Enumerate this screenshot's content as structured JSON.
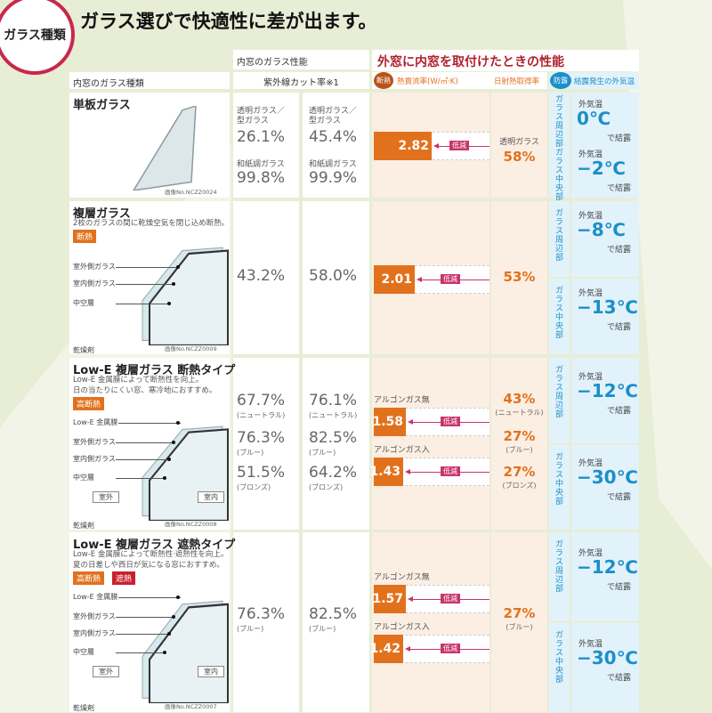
{
  "badge_title": "ガラス種類",
  "headline": "ガラス選びで快適性に差が出ます。",
  "header": {
    "glass_type": "内窓のガラス種類",
    "inner_perf": "内窓のガラス性能",
    "uv_cut": "紫外線カット率※1",
    "outer_title": "外窓に内窓を取付けたときの性能",
    "insulation_tag": "断熱",
    "heat_transfer": "熱貫流率(W/㎡·K)",
    "solar_gain": "日射熱取得率",
    "dew_tag": "防露",
    "dew_temp": "結露発生の外気温"
  },
  "colors": {
    "orange": "#e2711d",
    "pink": "#c8356b",
    "blue": "#1a8fc9",
    "red_title": "#b0202e",
    "circle": "#c8284a"
  },
  "common": {
    "edge": "ガラス周辺部",
    "center": "ガラス中央部",
    "outside_temp": "外気温",
    "condense": "で結露",
    "reduce": "低減",
    "outdoor": "室外",
    "indoor": "室内"
  },
  "rows": [
    {
      "name": "単板ガラス",
      "desc": [],
      "tags": [],
      "layers": [],
      "desiccant": "",
      "image_no": "画像No.NCZZ0024",
      "uv": [
        [
          {
            "label": "透明ガラス／\n型ガラス",
            "value": "26.1%"
          },
          {
            "label": "和紙調ガラス",
            "value": "99.8%"
          }
        ],
        [
          {
            "label": "透明ガラス／\n型ガラス",
            "value": "45.4%"
          },
          {
            "label": "和紙調ガラス",
            "value": "99.9%"
          }
        ]
      ],
      "heat": [
        {
          "label": "",
          "value": 2.82
        }
      ],
      "solar": [
        {
          "label": "透明ガラス",
          "value": "58%"
        }
      ],
      "dew": [
        "0℃",
        "−2℃"
      ]
    },
    {
      "name": "複層ガラス",
      "desc": [
        "2枚のガラスの間に乾燥空気を閉じ込め断熱。"
      ],
      "tags": [
        {
          "text": "断熱",
          "color": "#e2711d"
        }
      ],
      "layers": [
        "室外側ガラス",
        "室内側ガラス",
        "中空層"
      ],
      "desiccant": "乾燥剤",
      "image_no": "画像No.NCZZ0009",
      "uv": [
        [
          {
            "value": "43.2%"
          }
        ],
        [
          {
            "value": "58.0%"
          }
        ]
      ],
      "heat": [
        {
          "label": "",
          "value": 2.01
        }
      ],
      "solar": [
        {
          "value": "53%"
        }
      ],
      "dew": [
        "−8℃",
        "−13℃"
      ]
    },
    {
      "name": "Low-E 複層ガラス 断熱タイプ",
      "desc": [
        "Low-E 金属膜によって断熱性を向上。",
        "日の当たりにくい窓、寒冷地におすすめ。"
      ],
      "tags": [
        {
          "text": "高断熱",
          "color": "#e2711d"
        }
      ],
      "layers": [
        "Low-E 金属膜",
        "室外側ガラス",
        "室内側ガラス",
        "中空層"
      ],
      "desiccant": "乾燥剤",
      "image_no": "画像No.NCZZ0008",
      "uv": [
        [
          {
            "value": "67.7%",
            "note": "(ニュートラル)"
          },
          {
            "value": "76.3%",
            "note": "(ブルー)"
          },
          {
            "value": "51.5%",
            "note": "(ブロンズ)"
          }
        ],
        [
          {
            "value": "76.1%",
            "note": "(ニュートラル)"
          },
          {
            "value": "82.5%",
            "note": "(ブルー)"
          },
          {
            "value": "64.2%",
            "note": "(ブロンズ)"
          }
        ]
      ],
      "heat": [
        {
          "label": "アルゴンガス無",
          "value": 1.58
        },
        {
          "label": "アルゴンガス入",
          "value": 1.43
        }
      ],
      "solar": [
        {
          "value": "43%",
          "note": "(ニュートラル)"
        },
        {
          "value": "27%",
          "note": "(ブルー)"
        },
        {
          "value": "27%",
          "note": "(ブロンズ)"
        }
      ],
      "dew": [
        "−12℃",
        "−30℃"
      ]
    },
    {
      "name": "Low-E 複層ガラス 遮熱タイプ",
      "desc": [
        "Low-E 金属膜によって断熱性·遮熱性を向上。",
        "夏の日差しや西日が気になる窓におすすめ。"
      ],
      "tags": [
        {
          "text": "高断熱",
          "color": "#e2711d"
        },
        {
          "text": "遮熱",
          "color": "#c8202e"
        }
      ],
      "layers": [
        "Low-E 金属膜",
        "室外側ガラス",
        "室内側ガラス",
        "中空層"
      ],
      "desiccant": "乾燥剤",
      "image_no": "画像No.NCZZ0007",
      "uv": [
        [
          {
            "value": "76.3%",
            "note": "(ブルー)"
          }
        ],
        [
          {
            "value": "82.5%",
            "note": "(ブルー)"
          }
        ]
      ],
      "heat": [
        {
          "label": "アルゴンガス無",
          "value": 1.57
        },
        {
          "label": "アルゴンガス入",
          "value": 1.42
        }
      ],
      "solar": [
        {
          "value": "27%",
          "note": "(ブルー)"
        }
      ],
      "dew": [
        "−12℃",
        "−30℃"
      ]
    }
  ]
}
